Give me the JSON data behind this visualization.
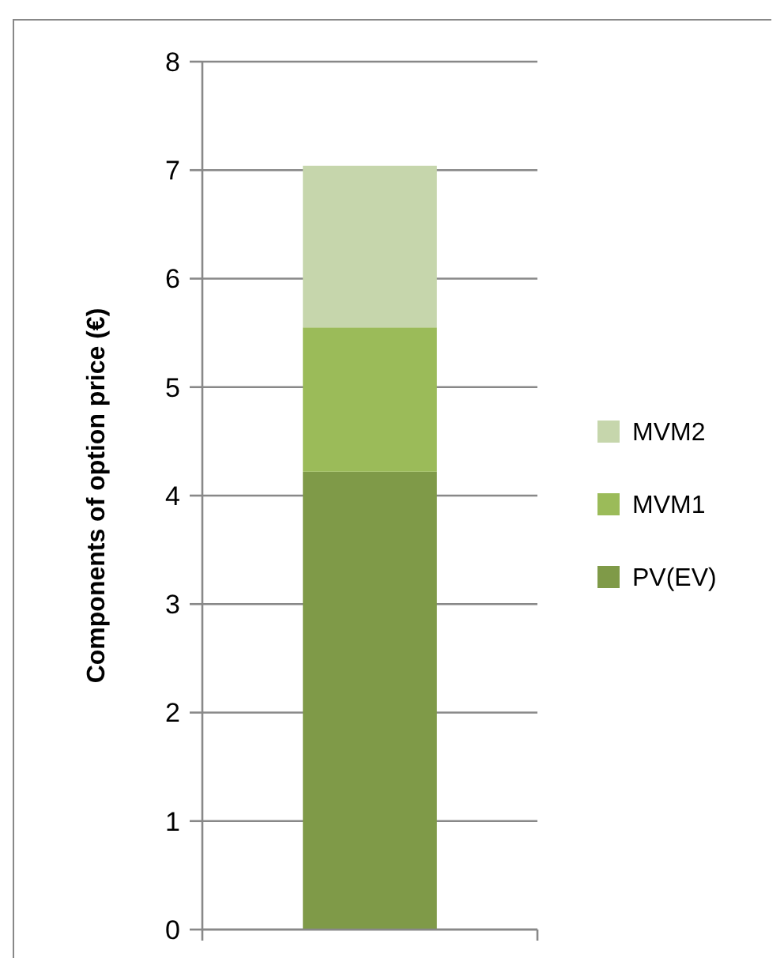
{
  "chart_data": {
    "type": "bar",
    "stacked": true,
    "ylabel": "Components of option price (€)",
    "categories": [
      null
    ],
    "series": [
      {
        "name": "PV(EV)",
        "color": "#7f9a48",
        "values": [
          4.22
        ]
      },
      {
        "name": "MVM1",
        "color": "#9bbb59",
        "values": [
          1.33
        ]
      },
      {
        "name": "MVM2",
        "color": "#c6d6ac",
        "values": [
          1.49
        ]
      }
    ],
    "ylim": [
      0,
      8
    ],
    "yticks": [
      0,
      1,
      2,
      3,
      4,
      5,
      6,
      7,
      8
    ],
    "grid": "y",
    "legend": "right"
  }
}
